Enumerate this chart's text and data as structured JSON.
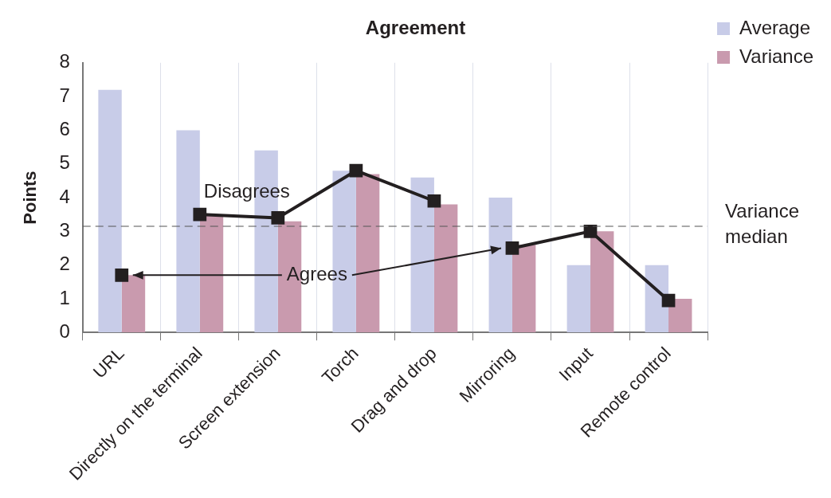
{
  "chart_data": {
    "type": "bar",
    "title": "Agreement",
    "ylabel": "Points",
    "categories": [
      "URL",
      "Directly on the terminal",
      "Screen extension",
      "Torch",
      "Drag and drop",
      "Mirroring",
      "Input",
      "Remote control"
    ],
    "series": [
      {
        "name": "Average",
        "color": "#c8cce8",
        "values": [
          7.2,
          6.0,
          5.4,
          4.8,
          4.6,
          4.0,
          2.0,
          2.0
        ]
      },
      {
        "name": "Variance",
        "color": "#c99aae",
        "values": [
          1.7,
          3.5,
          3.3,
          4.7,
          3.8,
          2.6,
          3.0,
          1.0
        ]
      },
      {
        "name": "Disagrees",
        "type": "line",
        "color": "#231f20",
        "values": [
          null,
          3.5,
          3.4,
          4.8,
          3.9,
          null,
          null,
          null
        ]
      },
      {
        "name": "Agrees",
        "type": "line",
        "color": "#231f20",
        "values": [
          1.7,
          null,
          null,
          null,
          null,
          2.5,
          3.0,
          0.95
        ]
      }
    ],
    "ylim": [
      0,
      8
    ],
    "yticks": [
      0,
      1,
      2,
      3,
      4,
      5,
      6,
      7,
      8
    ],
    "grid": "x",
    "legend": "right",
    "marker": "square",
    "line_style": "solid",
    "ref_lines": [
      {
        "axis": "y",
        "value": 3.15,
        "label": "Variance median",
        "color": "#555555",
        "line_style": "dashed"
      }
    ]
  }
}
